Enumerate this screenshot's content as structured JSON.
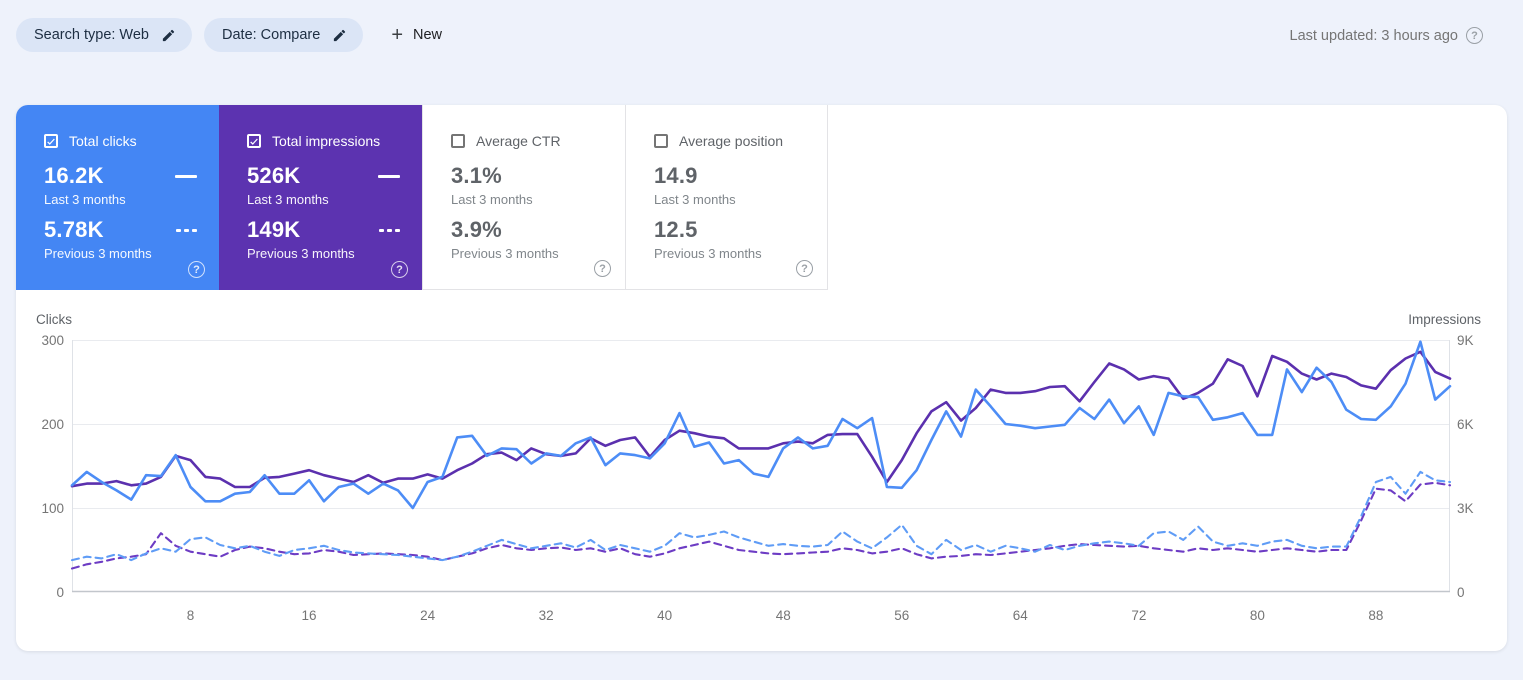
{
  "page": {
    "last_updated": "Last updated: 3 hours ago"
  },
  "toolbar": {
    "search_type_chip": "Search type: Web",
    "date_chip": "Date: Compare",
    "new_button": "New"
  },
  "cards": [
    {
      "label": "Total clicks",
      "checked": true,
      "color": "#4486f4",
      "value1": "16.2K",
      "period1": "Last 3 months",
      "value2": "5.78K",
      "period2": "Previous 3 months"
    },
    {
      "label": "Total impressions",
      "checked": true,
      "color": "#5c33b0",
      "value1": "526K",
      "period1": "Last 3 months",
      "value2": "149K",
      "period2": "Previous 3 months"
    },
    {
      "label": "Average CTR",
      "checked": false,
      "value1": "3.1%",
      "period1": "Last 3 months",
      "value2": "3.9%",
      "period2": "Previous 3 months"
    },
    {
      "label": "Average position",
      "checked": false,
      "value1": "14.9",
      "period1": "Last 3 months",
      "value2": "12.5",
      "period2": "Previous 3 months"
    }
  ],
  "chart_data": {
    "type": "line",
    "left_axis": {
      "label": "Clicks",
      "ticks": [
        "300",
        "200",
        "100",
        "0"
      ],
      "max": 300
    },
    "right_axis": {
      "label": "Impressions",
      "ticks": [
        "9K",
        "6K",
        "3K",
        "0"
      ],
      "max": 9000
    },
    "x_ticks": [
      "8",
      "16",
      "24",
      "32",
      "40",
      "48",
      "56",
      "64",
      "72",
      "80",
      "88"
    ],
    "x_count": 94,
    "grid": true,
    "series": [
      {
        "name": "Impressions - Previous 3 months",
        "axis": "right",
        "style": "dashed",
        "color": "#6d3cc4",
        "values": [
          840,
          990,
          1080,
          1200,
          1260,
          1350,
          2100,
          1650,
          1440,
          1350,
          1260,
          1500,
          1620,
          1560,
          1440,
          1350,
          1380,
          1500,
          1440,
          1320,
          1350,
          1380,
          1350,
          1320,
          1260,
          1140,
          1260,
          1380,
          1560,
          1680,
          1560,
          1500,
          1560,
          1590,
          1500,
          1560,
          1440,
          1560,
          1350,
          1260,
          1380,
          1560,
          1680,
          1800,
          1650,
          1500,
          1440,
          1380,
          1350,
          1380,
          1410,
          1440,
          1560,
          1500,
          1380,
          1440,
          1560,
          1350,
          1200,
          1260,
          1290,
          1350,
          1320,
          1380,
          1440,
          1500,
          1560,
          1650,
          1710,
          1680,
          1650,
          1620,
          1650,
          1560,
          1500,
          1440,
          1560,
          1500,
          1560,
          1500,
          1440,
          1500,
          1560,
          1500,
          1440,
          1500,
          1500,
          2550,
          3690,
          3630,
          3240,
          3840,
          3900,
          3810
        ]
      },
      {
        "name": "Clicks - Previous 3 months",
        "axis": "left",
        "style": "dashed",
        "color": "#5f9cf6",
        "values": [
          38,
          42,
          40,
          45,
          38,
          46,
          52,
          48,
          63,
          65,
          56,
          52,
          55,
          48,
          43,
          50,
          52,
          55,
          50,
          47,
          46,
          45,
          44,
          42,
          40,
          38,
          42,
          48,
          55,
          62,
          57,
          52,
          55,
          58,
          53,
          62,
          50,
          56,
          52,
          48,
          55,
          70,
          65,
          68,
          72,
          65,
          60,
          55,
          57,
          55,
          54,
          56,
          72,
          60,
          52,
          65,
          80,
          55,
          45,
          62,
          50,
          56,
          48,
          55,
          52,
          48,
          56,
          50,
          55,
          58,
          60,
          58,
          55,
          70,
          72,
          62,
          78,
          60,
          55,
          58,
          55,
          60,
          62,
          55,
          52,
          54,
          54,
          90,
          131,
          137,
          117,
          143,
          133,
          131
        ]
      },
      {
        "name": "Impressions - Last 3 months",
        "axis": "right",
        "style": "solid",
        "color": "#5b30ae",
        "values": [
          3780,
          3870,
          3870,
          3960,
          3810,
          3870,
          4110,
          4860,
          4710,
          4110,
          4050,
          3750,
          3750,
          4080,
          4110,
          4230,
          4350,
          4170,
          4050,
          3930,
          4170,
          3900,
          4050,
          4050,
          4200,
          4050,
          4350,
          4590,
          4920,
          4980,
          4710,
          5130,
          4920,
          4860,
          4950,
          5490,
          5220,
          5430,
          5520,
          4830,
          5430,
          5760,
          5670,
          5550,
          5490,
          5130,
          5130,
          5130,
          5310,
          5370,
          5310,
          5610,
          5640,
          5640,
          4830,
          3930,
          4710,
          5670,
          6450,
          6780,
          6120,
          6570,
          7230,
          7110,
          7110,
          7170,
          7320,
          7350,
          6810,
          7500,
          8160,
          7950,
          7590,
          7710,
          7620,
          6900,
          7110,
          7440,
          8310,
          8070,
          6990,
          8430,
          8220,
          7800,
          7590,
          7800,
          7680,
          7380,
          7260,
          7920,
          8340,
          8580,
          7860,
          7620
        ]
      },
      {
        "name": "Clicks - Last 3 months",
        "axis": "left",
        "style": "solid",
        "color": "#4d8df6",
        "values": [
          127,
          143,
          131,
          121,
          110,
          139,
          138,
          163,
          125,
          108,
          108,
          117,
          119,
          139,
          117,
          117,
          133,
          108,
          125,
          129,
          117,
          129,
          121,
          100,
          131,
          137,
          184,
          186,
          162,
          171,
          170,
          153,
          165,
          162,
          177,
          184,
          151,
          165,
          163,
          159,
          177,
          213,
          173,
          178,
          153,
          157,
          141,
          137,
          171,
          184,
          171,
          174,
          206,
          195,
          207,
          125,
          124,
          145,
          181,
          215,
          185,
          241,
          221,
          200,
          198,
          195,
          197,
          199,
          219,
          206,
          229,
          201,
          221,
          187,
          237,
          233,
          232,
          205,
          208,
          213,
          187,
          187,
          265,
          238,
          267,
          250,
          217,
          206,
          205,
          221,
          248,
          298,
          229,
          245
        ]
      }
    ]
  }
}
